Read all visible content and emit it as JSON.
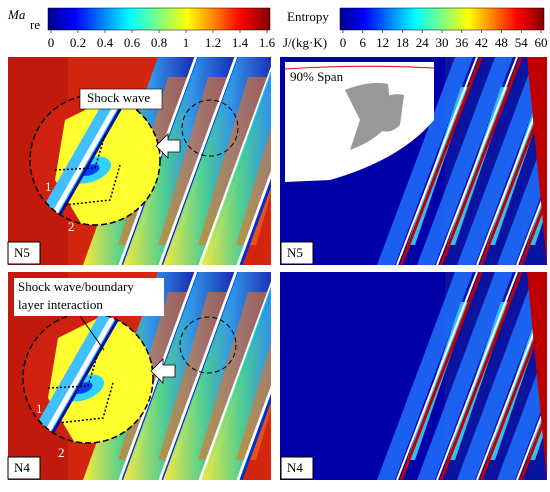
{
  "colorbars": [
    {
      "title": "Ma",
      "title_subscript": "re",
      "lim": [
        0,
        1.6
      ],
      "ticks": [
        0,
        0.2,
        0.4,
        0.6,
        0.8,
        1,
        1.2,
        1.4,
        1.6
      ]
    },
    {
      "title": "Entropy",
      "unit": "J/(kg·K)",
      "lim": [
        0,
        60
      ],
      "ticks": [
        0,
        6,
        12,
        18,
        24,
        30,
        36,
        42,
        48,
        54,
        60
      ]
    }
  ],
  "panels": [
    {
      "label": "N5",
      "annotation": "Shock wave",
      "markers": [
        "1",
        "2"
      ]
    },
    {
      "label": "N5",
      "inset_label": "90% Span"
    },
    {
      "label": "N4",
      "annotation": [
        "Shock wave/boundary",
        "layer interaction"
      ],
      "markers": [
        "1",
        "2"
      ]
    },
    {
      "label": "N4"
    }
  ]
}
